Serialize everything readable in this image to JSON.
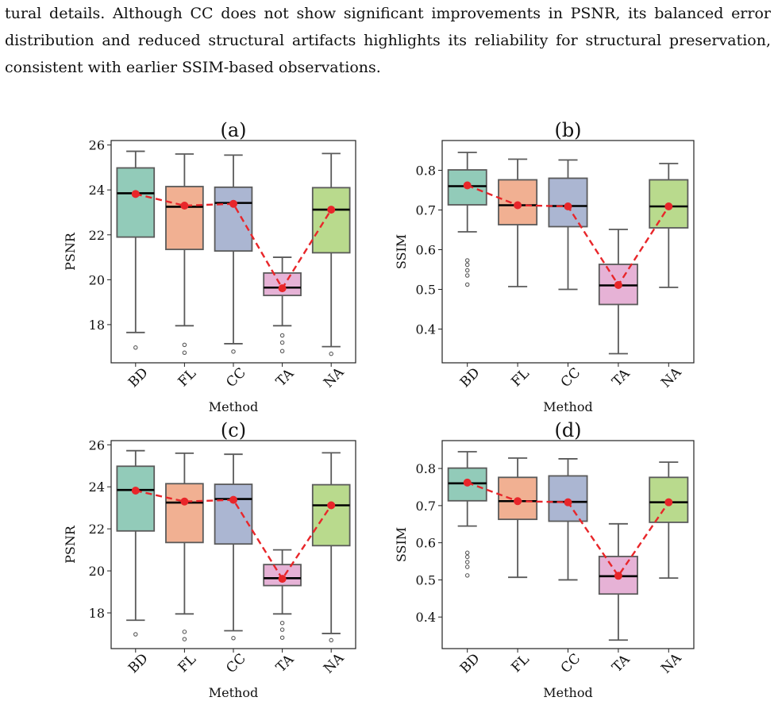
{
  "paragraph": {
    "lines": [
      "tural details. Although CC does not show significant improvements in PSNR, its balanced error",
      "distribution and reduced structural artifacts highlights its reliability for structural preservation,",
      "consistent with earlier SSIM-based observations."
    ]
  },
  "colors": {
    "BD": "#92cbb9",
    "FL": "#f1b092",
    "CC": "#abb6d2",
    "TA": "#e6b2d6",
    "NA": "#b9da8d",
    "box_edge": "#5a5a5a",
    "median": "#000000",
    "mean_line": "#e8262a"
  },
  "chart_data": [
    {
      "type": "box",
      "panel": "(a)",
      "title": "(a)",
      "xlabel": "Method",
      "ylabel": "PSNR",
      "categories": [
        "BD",
        "FL",
        "CC",
        "TA",
        "NA"
      ],
      "ylim": [
        16.3,
        26.2
      ],
      "yticks": [
        18,
        20,
        22,
        24,
        26
      ],
      "boxes": [
        {
          "name": "BD",
          "whisker_low": 17.65,
          "q1": 21.9,
          "median": 23.85,
          "q3": 24.98,
          "whisker_high": 25.72,
          "mean": 23.82,
          "outliers": [
            16.98
          ]
        },
        {
          "name": "FL",
          "whisker_low": 17.95,
          "q1": 21.35,
          "median": 23.25,
          "q3": 24.15,
          "whisker_high": 25.6,
          "mean": 23.3,
          "outliers": [
            17.1,
            16.75
          ]
        },
        {
          "name": "CC",
          "whisker_low": 17.15,
          "q1": 21.28,
          "median": 23.42,
          "q3": 24.12,
          "whisker_high": 25.55,
          "mean": 23.38,
          "outliers": [
            16.8
          ]
        },
        {
          "name": "TA",
          "whisker_low": 17.95,
          "q1": 19.3,
          "median": 19.65,
          "q3": 20.3,
          "whisker_high": 21.0,
          "mean": 19.62,
          "outliers": [
            17.52,
            17.2,
            16.82
          ]
        },
        {
          "name": "NA",
          "whisker_low": 17.02,
          "q1": 21.2,
          "median": 23.12,
          "q3": 24.1,
          "whisker_high": 25.62,
          "mean": 23.12,
          "outliers": [
            16.7
          ]
        }
      ],
      "mean_line": "dashed"
    },
    {
      "type": "box",
      "panel": "(b)",
      "title": "(b)",
      "xlabel": "Method",
      "ylabel": "SSIM",
      "categories": [
        "BD",
        "FL",
        "CC",
        "TA",
        "NA"
      ],
      "ylim": [
        0.315,
        0.875
      ],
      "yticks": [
        0.4,
        0.5,
        0.6,
        0.7,
        0.8
      ],
      "boxes": [
        {
          "name": "BD",
          "whisker_low": 0.645,
          "q1": 0.713,
          "median": 0.76,
          "q3": 0.801,
          "whisker_high": 0.845,
          "mean": 0.762,
          "outliers": [
            0.573,
            0.562,
            0.548,
            0.535,
            0.512
          ]
        },
        {
          "name": "FL",
          "whisker_low": 0.507,
          "q1": 0.663,
          "median": 0.712,
          "q3": 0.776,
          "whisker_high": 0.828,
          "mean": 0.712,
          "outliers": []
        },
        {
          "name": "CC",
          "whisker_low": 0.5,
          "q1": 0.658,
          "median": 0.71,
          "q3": 0.78,
          "whisker_high": 0.826,
          "mean": 0.709,
          "outliers": []
        },
        {
          "name": "TA",
          "whisker_low": 0.338,
          "q1": 0.462,
          "median": 0.51,
          "q3": 0.563,
          "whisker_high": 0.651,
          "mean": 0.511,
          "outliers": []
        },
        {
          "name": "NA",
          "whisker_low": 0.505,
          "q1": 0.655,
          "median": 0.709,
          "q3": 0.776,
          "whisker_high": 0.817,
          "mean": 0.709,
          "outliers": []
        }
      ],
      "mean_line": "dashed"
    },
    {
      "type": "box",
      "panel": "(c)",
      "title": "(c)",
      "xlabel": "Method",
      "ylabel": "PSNR",
      "categories": [
        "BD",
        "FL",
        "CC",
        "TA",
        "NA"
      ],
      "ylim": [
        16.3,
        26.2
      ],
      "yticks": [
        18,
        20,
        22,
        24,
        26
      ],
      "boxes": [
        {
          "name": "BD",
          "whisker_low": 17.65,
          "q1": 21.9,
          "median": 23.85,
          "q3": 24.98,
          "whisker_high": 25.72,
          "mean": 23.82,
          "outliers": [
            16.98
          ]
        },
        {
          "name": "FL",
          "whisker_low": 17.95,
          "q1": 21.35,
          "median": 23.25,
          "q3": 24.15,
          "whisker_high": 25.6,
          "mean": 23.3,
          "outliers": [
            17.1,
            16.75
          ]
        },
        {
          "name": "CC",
          "whisker_low": 17.15,
          "q1": 21.28,
          "median": 23.42,
          "q3": 24.12,
          "whisker_high": 25.55,
          "mean": 23.38,
          "outliers": [
            16.8
          ]
        },
        {
          "name": "TA",
          "whisker_low": 17.95,
          "q1": 19.3,
          "median": 19.65,
          "q3": 20.3,
          "whisker_high": 21.0,
          "mean": 19.62,
          "outliers": [
            17.52,
            17.2,
            16.82
          ]
        },
        {
          "name": "NA",
          "whisker_low": 17.02,
          "q1": 21.2,
          "median": 23.12,
          "q3": 24.1,
          "whisker_high": 25.62,
          "mean": 23.12,
          "outliers": [
            16.7
          ]
        }
      ],
      "mean_line": "dashed"
    },
    {
      "type": "box",
      "panel": "(d)",
      "title": "(d)",
      "xlabel": "Method",
      "ylabel": "SSIM",
      "categories": [
        "BD",
        "FL",
        "CC",
        "TA",
        "NA"
      ],
      "ylim": [
        0.315,
        0.875
      ],
      "yticks": [
        0.4,
        0.5,
        0.6,
        0.7,
        0.8
      ],
      "boxes": [
        {
          "name": "BD",
          "whisker_low": 0.645,
          "q1": 0.713,
          "median": 0.76,
          "q3": 0.801,
          "whisker_high": 0.845,
          "mean": 0.762,
          "outliers": [
            0.573,
            0.562,
            0.548,
            0.535,
            0.512
          ]
        },
        {
          "name": "FL",
          "whisker_low": 0.507,
          "q1": 0.663,
          "median": 0.712,
          "q3": 0.776,
          "whisker_high": 0.828,
          "mean": 0.712,
          "outliers": []
        },
        {
          "name": "CC",
          "whisker_low": 0.5,
          "q1": 0.658,
          "median": 0.71,
          "q3": 0.78,
          "whisker_high": 0.826,
          "mean": 0.709,
          "outliers": []
        },
        {
          "name": "TA",
          "whisker_low": 0.338,
          "q1": 0.462,
          "median": 0.51,
          "q3": 0.563,
          "whisker_high": 0.651,
          "mean": 0.511,
          "outliers": []
        },
        {
          "name": "NA",
          "whisker_low": 0.505,
          "q1": 0.655,
          "median": 0.709,
          "q3": 0.776,
          "whisker_high": 0.817,
          "mean": 0.709,
          "outliers": []
        }
      ],
      "mean_line": "dashed"
    }
  ]
}
